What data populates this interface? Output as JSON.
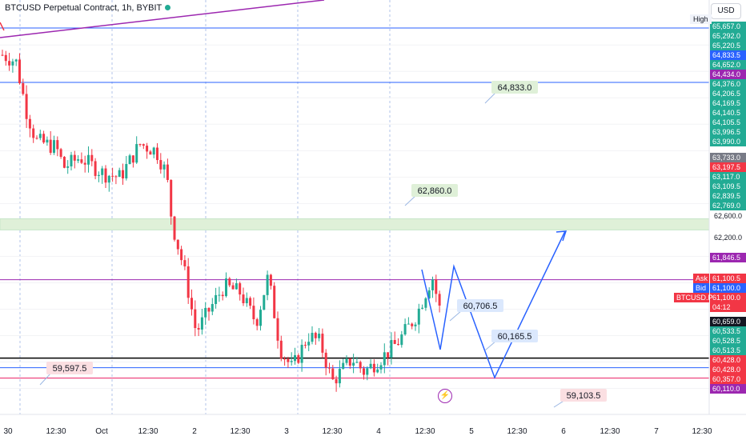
{
  "header": {
    "title": "BTCUSD Perpetual Contract, 1h, BYBIT",
    "currency": "USD",
    "high_label": "High"
  },
  "chart_data": {
    "type": "candlestick",
    "symbol": "BTCUSD Perpetual Contract",
    "interval": "1h",
    "exchange": "BYBIT",
    "price_axis": {
      "ticks": [
        "65,657.0",
        "65,292.0",
        "65,220.5",
        "64,833.5",
        "64,652.0",
        "64,434.0",
        "64,376.0",
        "64,206.5",
        "64,169.5",
        "64,140.5",
        "64,105.5",
        "63,996.5",
        "63,990.0",
        "63,733.0",
        "63,197.5",
        "63,117.0",
        "63,109.5",
        "62,839.5",
        "62,769.0",
        "62,600.0",
        "62,200.0",
        "61,846.5",
        "61,100.5",
        "61,100.0",
        "61,100.0",
        "60,659.0",
        "60,533.5",
        "60,528.5",
        "60,513.5",
        "60,428.0",
        "60,428.0",
        "60,357.0",
        "60,110.0"
      ],
      "chip_colors": [
        "#22ab94",
        "#22ab94",
        "#22ab94",
        "#2962ff",
        "#22ab94",
        "#9c27b0",
        "#22ab94",
        "#22ab94",
        "#22ab94",
        "#22ab94",
        "#22ab94",
        "#22ab94",
        "#22ab94",
        "#787b86",
        "#f23645",
        "#22ab94",
        "#22ab94",
        "#22ab94",
        "#22ab94",
        "none",
        "none",
        "#9c27b0",
        "#f23645",
        "#2962ff",
        "#f23645",
        "#131722",
        "#22ab94",
        "#22ab94",
        "#22ab94",
        "#f23645",
        "#f23645",
        "#f23645",
        "#9c27b0"
      ]
    },
    "time_axis": [
      "30",
      "12:30",
      "Oct",
      "12:30",
      "2",
      "12:30",
      "3",
      "12:30",
      "4",
      "12:30",
      "5",
      "12:30",
      "6",
      "12:30",
      "7",
      "12:30"
    ],
    "order_book": {
      "ask_label": "Ask",
      "bid_label": "Bid",
      "symbol_label": "BTCUSD.P",
      "countdown": "04:12"
    },
    "horizontal_levels": [
      {
        "price": 65657.0,
        "color": "#2962ff"
      },
      {
        "price": 64833.5,
        "color": "#2962ff"
      },
      {
        "price": 61846.5,
        "color": "#9c27b0"
      },
      {
        "price": 60659.0,
        "color": "#000000"
      },
      {
        "price": 60513.5,
        "color": "#2962ff"
      },
      {
        "price": 60357.0,
        "color": "#e91e63"
      }
    ],
    "zone": {
      "from": 62600.0,
      "to": 62769.0,
      "color": "#dff0d8"
    },
    "labels": [
      {
        "text": "64,833.0",
        "bg": "#dff0d8",
        "fg": "#131722"
      },
      {
        "text": "62,860.0",
        "bg": "#dff0d8",
        "fg": "#131722"
      },
      {
        "text": "60,706.5",
        "bg": "#dbe8fd",
        "fg": "#131722"
      },
      {
        "text": "60,165.5",
        "bg": "#dbe8fd",
        "fg": "#131722"
      },
      {
        "text": "59,597.5",
        "bg": "#fbdfe2",
        "fg": "#131722"
      },
      {
        "text": "59,103.5",
        "bg": "#fbdfe2",
        "fg": "#131722"
      }
    ],
    "projection": {
      "color": "#2962ff"
    },
    "trendline": {
      "color": "#9c27b0"
    },
    "candle_colors": {
      "up": "#22ab94",
      "down": "#f23645"
    },
    "grid": true
  }
}
